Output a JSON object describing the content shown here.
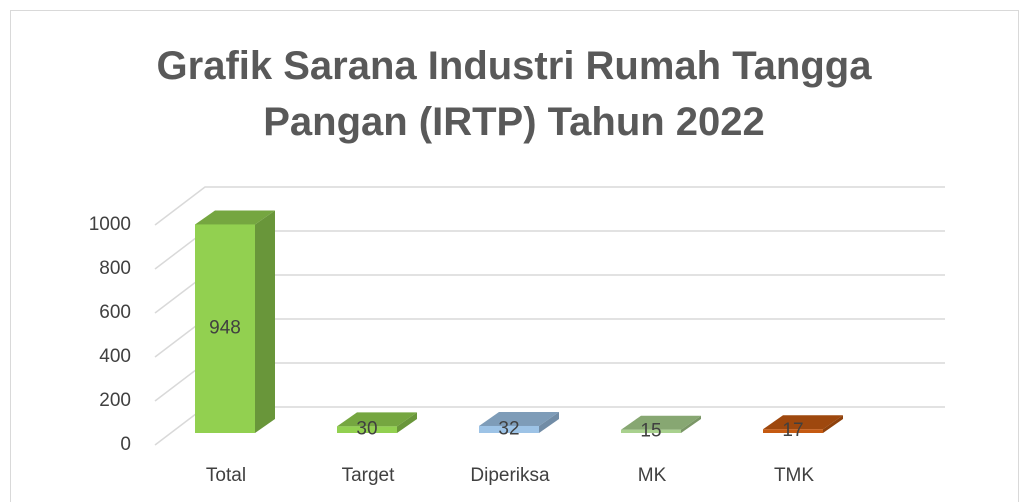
{
  "chart_data": {
    "type": "bar3d",
    "title": "Grafik Sarana Industri Rumah Tangga Pangan (IRTP) Tahun 2022",
    "categories": [
      "Total",
      "Target",
      "Diperiksa",
      "MK",
      "TMK"
    ],
    "values": [
      948,
      30,
      32,
      15,
      17
    ],
    "colors": [
      "#92d050",
      "#92d050",
      "#9dc3e6",
      "#a9d18e",
      "#c55a11"
    ],
    "ylim": [
      0,
      1000
    ],
    "yticks": [
      0,
      200,
      400,
      600,
      800,
      1000
    ],
    "grid": true
  }
}
